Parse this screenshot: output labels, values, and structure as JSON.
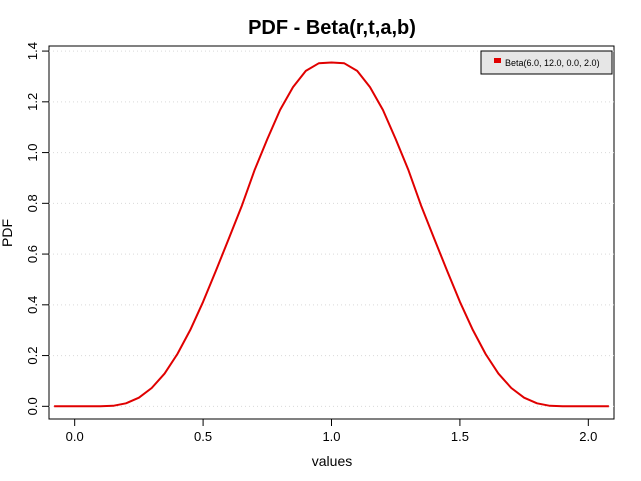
{
  "chart_data": {
    "type": "line",
    "title": "PDF - Beta(r,t,a,b)",
    "xlabel": "values",
    "ylabel": "PDF",
    "xlim": [
      -0.1,
      2.1
    ],
    "ylim": [
      -0.05,
      1.42
    ],
    "xticks": [
      0.0,
      0.5,
      1.0,
      1.5,
      2.0
    ],
    "xtick_labels": [
      "0.0",
      "0.5",
      "1.0",
      "1.5",
      "2.0"
    ],
    "yticks": [
      0.0,
      0.2,
      0.4,
      0.6,
      0.8,
      1.0,
      1.2,
      1.4
    ],
    "ytick_labels": [
      "0.0",
      "0.2",
      "0.4",
      "0.6",
      "0.8",
      "1.0",
      "1.2",
      "1.4"
    ],
    "grid": "horizontal dotted",
    "legend_position": "top-right",
    "series": [
      {
        "name": "Beta(6.0, 12.0, 0.0, 2.0)",
        "color": "#e00000",
        "x": [
          -0.08,
          0.0,
          0.1,
          0.15,
          0.2,
          0.25,
          0.3,
          0.35,
          0.4,
          0.45,
          0.5,
          0.55,
          0.6,
          0.65,
          0.7,
          0.75,
          0.8,
          0.85,
          0.9,
          0.95,
          1.0,
          1.05,
          1.1,
          1.15,
          1.2,
          1.25,
          1.3,
          1.35,
          1.4,
          1.45,
          1.5,
          1.55,
          1.6,
          1.65,
          1.7,
          1.75,
          1.8,
          1.85,
          1.9,
          2.0,
          2.08
        ],
        "y": [
          0.0,
          0.0,
          0.0,
          0.002,
          0.012,
          0.034,
          0.072,
          0.129,
          0.206,
          0.301,
          0.412,
          0.534,
          0.661,
          0.788,
          0.93,
          1.053,
          1.168,
          1.258,
          1.322,
          1.352,
          1.355,
          1.352,
          1.322,
          1.258,
          1.168,
          1.053,
          0.93,
          0.788,
          0.661,
          0.534,
          0.412,
          0.301,
          0.206,
          0.129,
          0.072,
          0.034,
          0.012,
          0.002,
          0.0,
          0.0,
          0.0
        ]
      }
    ]
  }
}
